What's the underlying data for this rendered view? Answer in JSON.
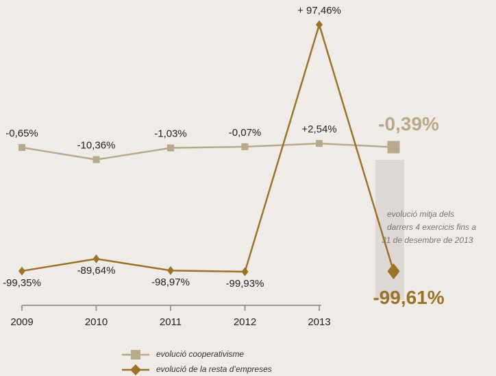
{
  "chart_data": {
    "type": "line",
    "categories": [
      "2009",
      "2010",
      "2011",
      "2012",
      "2013",
      null
    ],
    "series": [
      {
        "name": "evolució cooperativisme",
        "color": "#b8a88c",
        "values": [
          -0.65,
          -10.36,
          -1.03,
          -0.07,
          2.54,
          -0.39
        ],
        "value_labels": [
          "-0,65%",
          "-10,36%",
          "-1,03%",
          "-0,07%",
          "+2,54%",
          "-0,39%"
        ]
      },
      {
        "name": "evolució de la resta d’empreses",
        "color": "#9a7228",
        "values": [
          -99.35,
          -89.64,
          -98.97,
          -99.93,
          97.46,
          -99.61
        ],
        "value_labels": [
          "-99,35%",
          "-89,64%",
          "-98,97%",
          "-99,93%",
          "+ 97,46%",
          "-99,61%"
        ]
      }
    ],
    "annotation": [
      "evolució mitja dels",
      "darrers 4 exercicis fins a",
      "31 de desembre de 2013"
    ]
  }
}
